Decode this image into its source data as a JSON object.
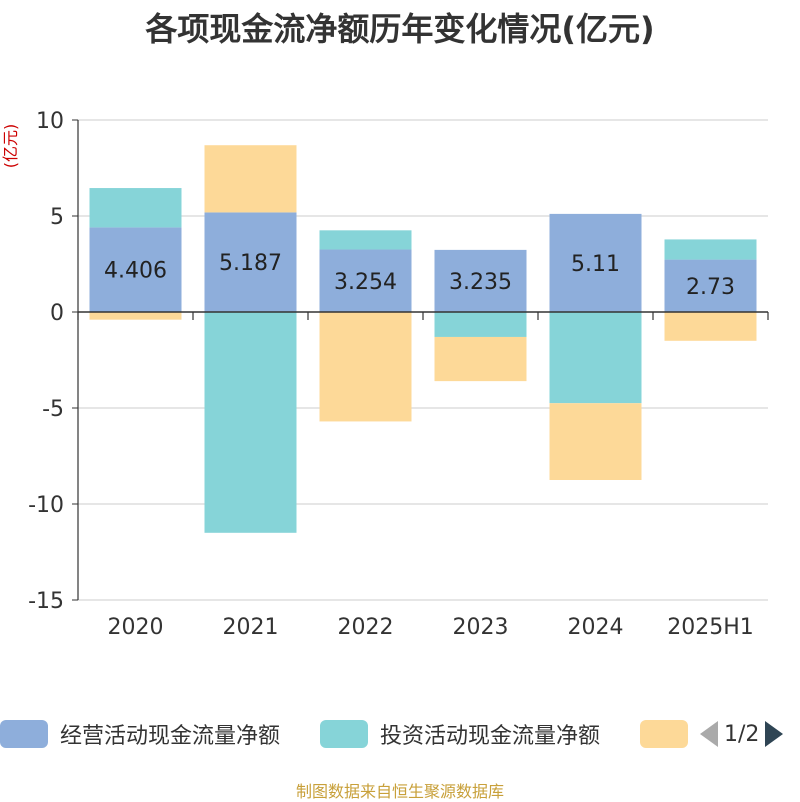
{
  "chart_data": {
    "type": "bar",
    "stacked": true,
    "title": "各项现金流净额历年变化情况(亿元)",
    "ylabel": "(亿元)",
    "ylim": [
      -15,
      10
    ],
    "yticks": [
      10,
      5,
      0,
      -5,
      -10,
      -15
    ],
    "categories": [
      "2020",
      "2021",
      "2022",
      "2023",
      "2024",
      "2025H1"
    ],
    "grid": true,
    "legend_position": "bottom",
    "series": [
      {
        "name": "经营活动现金流量净额",
        "color": "#8eaedb",
        "values": [
          4.406,
          5.187,
          3.254,
          3.235,
          5.11,
          2.73
        ],
        "labels": [
          "4.406",
          "5.187",
          "3.254",
          "3.235",
          "5.11",
          "2.73"
        ]
      },
      {
        "name": "投资活动现金流量净额",
        "color": "#86d4d8",
        "values": [
          2.05,
          -11.5,
          1.0,
          -1.3,
          -4.75,
          1.05
        ]
      },
      {
        "name": "",
        "color": "#fdd998",
        "values": [
          -0.4,
          3.5,
          -5.7,
          -2.3,
          -4.0,
          -1.5
        ]
      }
    ]
  },
  "legend": {
    "items": [
      {
        "label": "经营活动现金流量净额",
        "color": "#8eaedb"
      },
      {
        "label": "投资活动现金流量净额",
        "color": "#86d4d8"
      },
      {
        "label": "",
        "color": "#fdd998"
      }
    ],
    "page": "1/2"
  },
  "footer": {
    "source": "制图数据来自恒生聚源数据库"
  },
  "colors": {
    "axis_label": "#cc0000",
    "text": "#333333",
    "grid": "#cccccc"
  }
}
